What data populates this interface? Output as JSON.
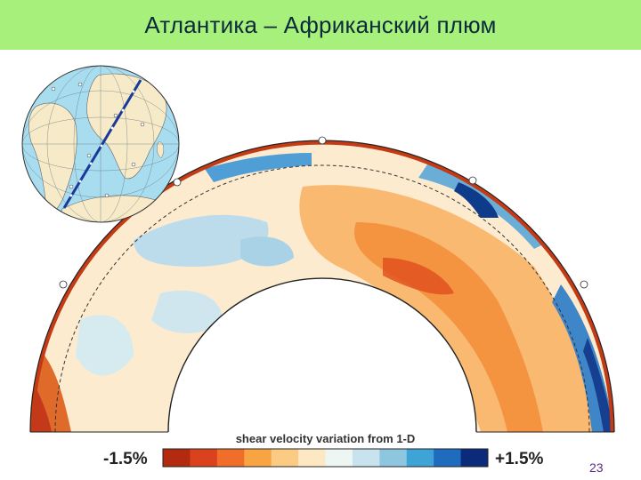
{
  "slide": {
    "title": "Атлантика – Африканский плюм",
    "page_number": "23"
  },
  "figure": {
    "kind": "mantle shear-velocity cross-section",
    "colorbar": {
      "title": "shear velocity variation from 1-D",
      "min_label": "-1.5%",
      "max_label": "+1.5%",
      "colors": [
        "#b22a10",
        "#d9421c",
        "#f06e2a",
        "#f8a443",
        "#fbcb84",
        "#fde8c4",
        "#eef6f3",
        "#c8e3ee",
        "#8fc6df",
        "#3ea3d6",
        "#1f6bbd",
        "#0b2a7a"
      ]
    },
    "colors": {
      "shell_red": "#c43a14",
      "shell_blue": "#1c62b8",
      "globe_ocean": "#a8dcef",
      "globe_land": "#f6eac8",
      "profile_line": "#1a3a9a",
      "title_bar": "#a8f07c"
    }
  }
}
